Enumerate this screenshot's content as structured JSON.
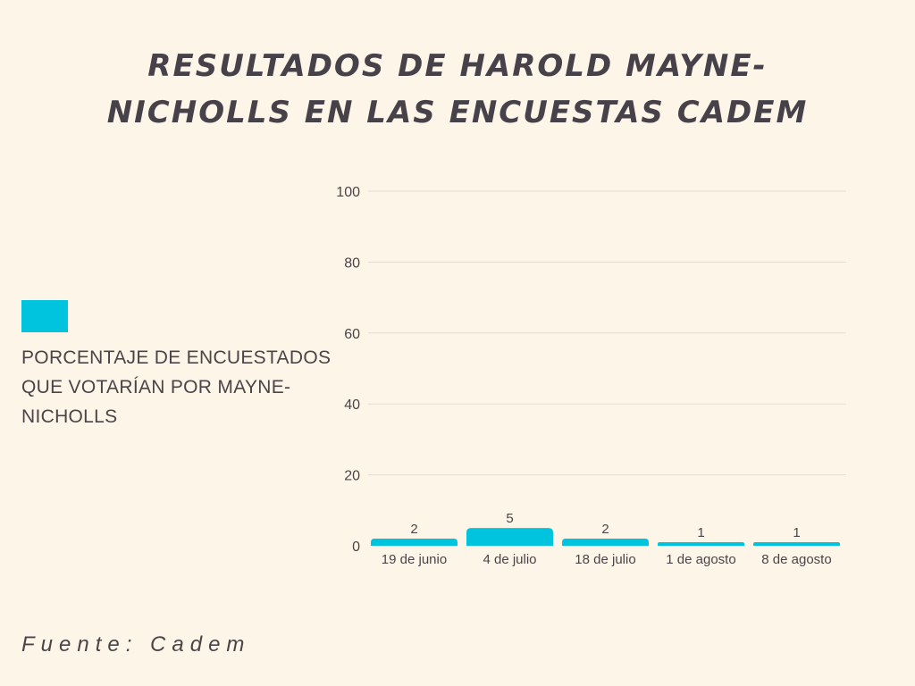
{
  "title": "RESULTADOS DE HAROLD MAYNE-NICHOLLS EN LAS ENCUESTAS CADEM",
  "legend": {
    "label": "PORCENTAJE DE ENCUESTADOS QUE VOTARÍAN POR MAYNE-NICHOLLS",
    "color": "#00c4de"
  },
  "source": "Fuente: Cadem",
  "chart_data": {
    "type": "bar",
    "categories": [
      "19 de junio",
      "4 de julio",
      "18 de julio",
      "1 de agosto",
      "8 de agosto"
    ],
    "series": [
      {
        "name": "PORCENTAJE DE ENCUESTADOS QUE VOTARÍAN POR MAYNE-NICHOLLS",
        "values": [
          2,
          5,
          2,
          1,
          1
        ]
      }
    ],
    "data_labels": [
      "2",
      "5",
      "2",
      "1",
      "1"
    ],
    "yticks": [
      0,
      20,
      40,
      60,
      80,
      100
    ],
    "ylim": [
      0,
      100
    ],
    "grid": true,
    "legend_position": "left",
    "title": "RESULTADOS DE HAROLD MAYNE-NICHOLLS EN LAS ENCUESTAS CADEM",
    "xlabel": "",
    "ylabel": ""
  }
}
